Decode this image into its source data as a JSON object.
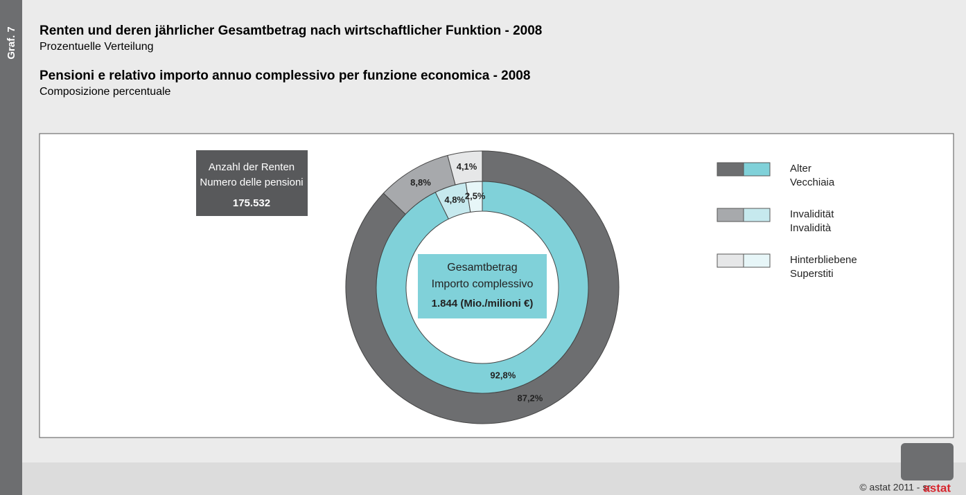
{
  "chart_data": {
    "type": "donut",
    "graph_label": "Graf. 7",
    "title": "Renten und deren jährlicher Gesamtbetrag nach wirtschaftlicher Funktion - 2008",
    "subtitle": "Prozentuelle Verteilung",
    "title2": "Pensioni e relativo importo annuo complessivo per funzione economica - 2008",
    "subtitle2": "Composizione percentuale",
    "categories": [
      [
        "Alter",
        "Vecchiaia"
      ],
      [
        "Invalidität",
        "Invalidità"
      ],
      [
        "Hinterbliebene",
        "Superstiti"
      ]
    ],
    "rings": [
      {
        "name": [
          "Anzahl der Renten",
          "Numero delle pensioni"
        ],
        "total": 175532,
        "total_label": "175.532",
        "values": [
          87.2,
          8.8,
          4.1
        ],
        "value_labels": [
          "87,2%",
          "8,8%",
          "4,1%"
        ],
        "colors": [
          "#6d6e70",
          "#a7a9ac",
          "#e6e7e8"
        ]
      },
      {
        "name": [
          "Gesamtbetrag",
          "Importo complessivo"
        ],
        "total": 1844,
        "total_label": "1.844 (Mio./milioni €)",
        "values": [
          92.8,
          4.8,
          2.5
        ],
        "value_labels": [
          "92,8%",
          "4,8%",
          "2,5%"
        ],
        "colors": [
          "#80d1d9",
          "#c6e9ee",
          "#e7f6f8"
        ]
      }
    ],
    "footer": "© astat 2011 - sr",
    "logo": "astat"
  }
}
